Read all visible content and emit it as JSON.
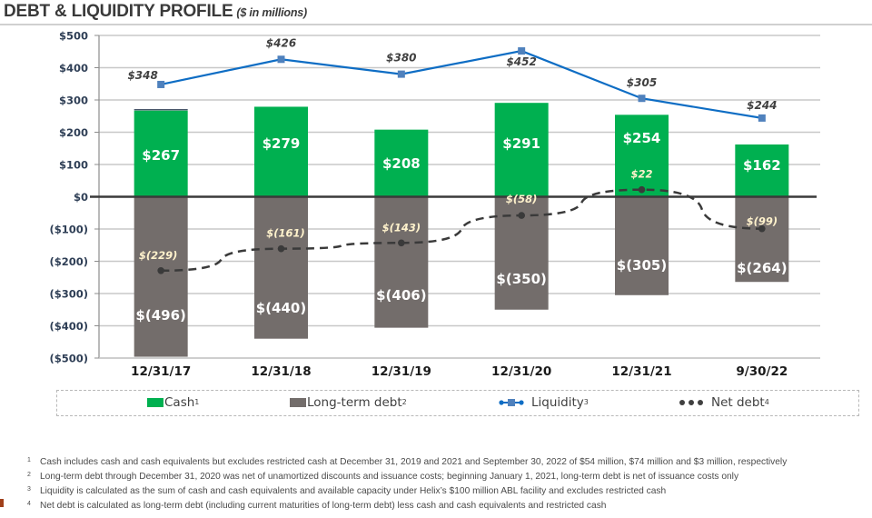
{
  "header": {
    "title": "DEBT & LIQUIDITY PROFILE",
    "subtitle": "($ in millions)"
  },
  "colors": {
    "cash": "#00b050",
    "debt": "#736d6b",
    "liquidity_line": "#0e6dc4",
    "liquidity_marker": "#4f81bd",
    "net_debt": "#404040",
    "net_debt_label": "#fff2cc"
  },
  "chart_data": {
    "type": "bar",
    "title": "DEBT & LIQUIDITY PROFILE",
    "subtitle": "($ in millions)",
    "xlabel": "",
    "ylabel": "",
    "ylim": [
      -500,
      500
    ],
    "yticks": [
      500,
      400,
      300,
      200,
      100,
      0,
      -100,
      -200,
      -300,
      -400,
      -500
    ],
    "ytick_labels": [
      "$500",
      "$400",
      "$300",
      "$200",
      "$100",
      "$0",
      "($100)",
      "($200)",
      "($300)",
      "($400)",
      "($500)"
    ],
    "grid": true,
    "categories": [
      "12/31/17",
      "12/31/18",
      "12/31/19",
      "12/31/20",
      "12/31/21",
      "9/30/22"
    ],
    "series": [
      {
        "name": "Cash",
        "type": "bar",
        "values": [
          267,
          279,
          208,
          291,
          254,
          162
        ],
        "labels": [
          "$267",
          "$279",
          "$208",
          "$291",
          "$254",
          "$162"
        ]
      },
      {
        "name": "Long-term debt",
        "type": "bar",
        "values": [
          -496,
          -440,
          -406,
          -350,
          -305,
          -264
        ],
        "labels": [
          "$(496)",
          "$(440)",
          "$(406)",
          "$(350)",
          "$(305)",
          "$(264)"
        ]
      },
      {
        "name": "Liquidity",
        "type": "line",
        "values": [
          348,
          426,
          380,
          452,
          305,
          244
        ],
        "labels": [
          "$348",
          "$426",
          "$380",
          "$452",
          "$305",
          "$244"
        ]
      },
      {
        "name": "Net debt",
        "type": "line-dashed",
        "values": [
          -229,
          -161,
          -143,
          -58,
          22,
          -99
        ],
        "labels": [
          "$(229)",
          "$(161)",
          "$(143)",
          "$(58)",
          "$22",
          "$(99)"
        ]
      }
    ],
    "legend": {
      "placement": "bottom",
      "entries": [
        {
          "label": "Cash",
          "sup": "1"
        },
        {
          "label": "Long-term debt",
          "sup": "2"
        },
        {
          "label": "Liquidity",
          "sup": "3"
        },
        {
          "label": "Net debt",
          "sup": "4"
        }
      ]
    }
  },
  "footnotes": [
    {
      "num": "1",
      "text": "Cash includes cash and cash equivalents but excludes restricted cash at December 31, 2019 and 2021 and September 30, 2022 of $54 million, $74 million and $3 million, respectively"
    },
    {
      "num": "2",
      "text": "Long-term debt through December 31, 2020 was net of unamortized discounts and issuance costs; beginning January 1, 2021, long-term debt is net of issuance costs only"
    },
    {
      "num": "3",
      "text": "Liquidity is calculated as the sum of cash and cash equivalents and available capacity under Helix’s $100 million ABL facility and excludes restricted cash"
    },
    {
      "num": "4",
      "text": "Net debt is calculated as long-term debt (including current maturities of long-term debt) less cash and cash equivalents and restricted cash"
    }
  ]
}
